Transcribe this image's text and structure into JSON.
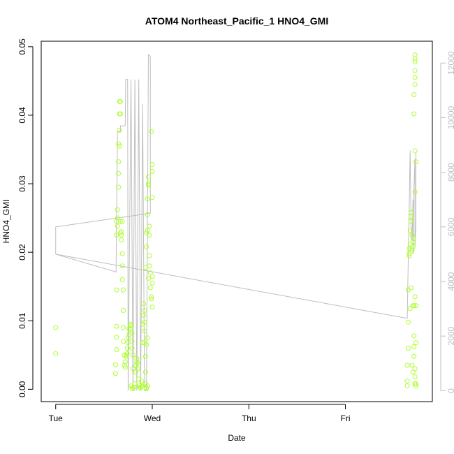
{
  "chart_data": {
    "type": "scatter",
    "title": "ATOM4 Northeast_Pacific_1 HNO4_GMI",
    "xlabel": "Date",
    "ylabel": "HNO4_GMI",
    "x_ticks": [
      {
        "label": "Tue",
        "value": 0
      },
      {
        "label": "Wed",
        "value": 1
      },
      {
        "label": "Thu",
        "value": 2
      },
      {
        "label": "Fri",
        "value": 3
      }
    ],
    "xlim": [
      -0.15,
      3.9
    ],
    "ylim": [
      -0.0018,
      0.0508
    ],
    "y_ticks": [
      "0.00",
      "0.01",
      "0.02",
      "0.03",
      "0.04",
      "0.05"
    ],
    "y2lim": [
      -400,
      12800
    ],
    "y2_ticks": [
      "0",
      "2000",
      "4000",
      "6000",
      "8000",
      "10000",
      "12000"
    ],
    "colors": {
      "points": "#adff2f",
      "line": "#bebebe",
      "axes": "#000000",
      "right_axis": "#bdbdbd"
    },
    "series": [
      {
        "type": "points",
        "axis": "left",
        "values": [
          [
            0.0,
            0.009
          ],
          [
            0.0,
            0.0052
          ],
          [
            0.62,
            0.0023
          ],
          [
            0.62,
            0.0036
          ],
          [
            0.63,
            0.0058
          ],
          [
            0.63,
            0.0076
          ],
          [
            0.63,
            0.0092
          ],
          [
            0.63,
            0.0145
          ],
          [
            0.63,
            0.0225
          ],
          [
            0.63,
            0.0245
          ],
          [
            0.64,
            0.025
          ],
          [
            0.64,
            0.0262
          ],
          [
            0.64,
            0.0238
          ],
          [
            0.65,
            0.0295
          ],
          [
            0.65,
            0.0315
          ],
          [
            0.65,
            0.0332
          ],
          [
            0.65,
            0.0358
          ],
          [
            0.66,
            0.0355
          ],
          [
            0.66,
            0.0378
          ],
          [
            0.66,
            0.0402
          ],
          [
            0.66,
            0.042
          ],
          [
            0.67,
            0.042
          ],
          [
            0.67,
            0.0402
          ],
          [
            0.67,
            0.0245
          ],
          [
            0.67,
            0.0228
          ],
          [
            0.68,
            0.0225
          ],
          [
            0.68,
            0.0218
          ],
          [
            0.68,
            0.023
          ],
          [
            0.69,
            0.0245
          ],
          [
            0.69,
            0.0198
          ],
          [
            0.69,
            0.018
          ],
          [
            0.69,
            0.016
          ],
          [
            0.7,
            0.0145
          ],
          [
            0.7,
            0.0115
          ],
          [
            0.7,
            0.009
          ],
          [
            0.7,
            0.007
          ],
          [
            0.71,
            0.005
          ],
          [
            0.71,
            0.0035
          ],
          [
            0.72,
            0.0032
          ],
          [
            0.72,
            0.004
          ],
          [
            0.73,
            0.0048
          ],
          [
            0.73,
            0.005
          ],
          [
            0.74,
            0.0052
          ],
          [
            0.74,
            0.006
          ],
          [
            0.75,
            0.0068
          ],
          [
            0.75,
            0.0075
          ],
          [
            0.76,
            0.008
          ],
          [
            0.76,
            0.0088
          ],
          [
            0.77,
            0.0095
          ],
          [
            0.78,
            0.0093
          ],
          [
            0.78,
            0.0088
          ],
          [
            0.79,
            0.0082
          ],
          [
            0.79,
            0.007
          ],
          [
            0.79,
            0.006
          ],
          [
            0.8,
            0.005
          ],
          [
            0.8,
            0.003
          ],
          [
            0.78,
            0.0005
          ],
          [
            0.79,
            0.0002
          ],
          [
            0.8,
            0.0001
          ],
          [
            0.81,
            0.0003
          ],
          [
            0.82,
            0.0008
          ],
          [
            0.83,
            0.0025
          ],
          [
            0.83,
            0.0035
          ],
          [
            0.84,
            0.004
          ],
          [
            0.84,
            0.0045
          ],
          [
            0.85,
            0.0038
          ],
          [
            0.85,
            0.003
          ],
          [
            0.86,
            0.0015
          ],
          [
            0.87,
            0.0006
          ],
          [
            0.87,
            0.0003
          ],
          [
            0.88,
            0.0002
          ],
          [
            0.89,
            0.0004
          ],
          [
            0.89,
            0.0012
          ],
          [
            0.9,
            0.0068
          ],
          [
            0.9,
            0.0095
          ],
          [
            0.91,
            0.0108
          ],
          [
            0.91,
            0.0125
          ],
          [
            0.92,
            0.0115
          ],
          [
            0.92,
            0.0098
          ],
          [
            0.92,
            0.0085
          ],
          [
            0.92,
            0.0068
          ],
          [
            0.93,
            0.0048
          ],
          [
            0.93,
            0.0025
          ],
          [
            0.93,
            0.0008
          ],
          [
            0.94,
            0.0002
          ],
          [
            0.94,
            0.0001
          ],
          [
            0.95,
            0.0005
          ],
          [
            0.93,
            0.0178
          ],
          [
            0.94,
            0.0208
          ],
          [
            0.94,
            0.0228
          ],
          [
            0.95,
            0.0232
          ],
          [
            0.95,
            0.0255
          ],
          [
            0.95,
            0.0278
          ],
          [
            0.96,
            0.03
          ],
          [
            0.96,
            0.031
          ],
          [
            0.96,
            0.0298
          ],
          [
            0.97,
            0.0238
          ],
          [
            0.97,
            0.0225
          ],
          [
            0.97,
            0.0195
          ],
          [
            0.97,
            0.018
          ],
          [
            0.98,
            0.017
          ],
          [
            0.98,
            0.0148
          ],
          [
            0.99,
            0.0135
          ],
          [
            0.99,
            0.0132
          ],
          [
            1.0,
            0.0155
          ],
          [
            1.0,
            0.0165
          ],
          [
            1.0,
            0.012
          ],
          [
            1.0,
            0.028
          ],
          [
            1.0,
            0.0318
          ],
          [
            1.0,
            0.0328
          ],
          [
            0.99,
            0.0376
          ],
          [
            0.96,
            0.0162
          ],
          [
            0.95,
            0.0075
          ],
          [
            0.94,
            0.0065
          ],
          [
            3.64,
            0.0005
          ],
          [
            3.64,
            0.0012
          ],
          [
            3.64,
            0.0035
          ],
          [
            3.65,
            0.006
          ],
          [
            3.65,
            0.0098
          ],
          [
            3.65,
            0.0145
          ],
          [
            3.66,
            0.0195
          ],
          [
            3.66,
            0.0205
          ],
          [
            3.66,
            0.0198
          ],
          [
            3.67,
            0.0212
          ],
          [
            3.67,
            0.0232
          ],
          [
            3.68,
            0.0245
          ],
          [
            3.68,
            0.0258
          ],
          [
            3.68,
            0.0252
          ],
          [
            3.69,
            0.0225
          ],
          [
            3.69,
            0.0202
          ],
          [
            3.69,
            0.0205
          ],
          [
            3.7,
            0.0215
          ],
          [
            3.7,
            0.022
          ],
          [
            3.7,
            0.0208
          ],
          [
            3.7,
            0.0122
          ],
          [
            3.71,
            0.0122
          ],
          [
            3.71,
            0.0078
          ],
          [
            3.71,
            0.0062
          ],
          [
            3.71,
            0.0048
          ],
          [
            3.72,
            0.003
          ],
          [
            3.72,
            0.0018
          ],
          [
            3.72,
            0.0008
          ],
          [
            3.73,
            0.0008
          ],
          [
            3.73,
            0.0005
          ],
          [
            3.72,
            0.0288
          ],
          [
            3.72,
            0.0348
          ],
          [
            3.73,
            0.0332
          ],
          [
            3.71,
            0.0402
          ],
          [
            3.71,
            0.043
          ],
          [
            3.72,
            0.0445
          ],
          [
            3.72,
            0.0455
          ],
          [
            3.72,
            0.0465
          ],
          [
            3.72,
            0.0478
          ],
          [
            3.72,
            0.0482
          ],
          [
            3.72,
            0.0488
          ],
          [
            3.68,
            0.0148
          ],
          [
            3.67,
            0.0118
          ],
          [
            3.72,
            0.0135
          ],
          [
            3.73,
            0.0122
          ],
          [
            3.73,
            0.0068
          ],
          [
            3.69,
            0.0035
          ],
          [
            3.7,
            0.0025
          ]
        ]
      },
      {
        "type": "line",
        "axis": "right",
        "values": [
          [
            0.0,
            6000
          ],
          [
            0.0,
            5000
          ],
          [
            0.625,
            4350
          ],
          [
            0.625,
            4400
          ],
          [
            0.64,
            9500
          ],
          [
            0.67,
            9500
          ],
          [
            0.67,
            9700
          ],
          [
            0.72,
            9700
          ],
          [
            0.725,
            11400
          ],
          [
            0.745,
            11400
          ],
          [
            0.75,
            0
          ],
          [
            0.78,
            11400
          ],
          [
            0.8,
            0
          ],
          [
            0.82,
            11400
          ],
          [
            0.84,
            0
          ],
          [
            0.86,
            11400
          ],
          [
            0.88,
            0
          ],
          [
            0.9,
            10500
          ],
          [
            0.92,
            0
          ],
          [
            0.94,
            0
          ],
          [
            0.96,
            12300
          ],
          [
            0.98,
            12250
          ],
          [
            0.98,
            6500
          ],
          [
            0.0,
            6000
          ],
          [
            0.0,
            5000
          ],
          [
            3.64,
            2650
          ],
          [
            3.67,
            8800
          ],
          [
            3.68,
            6000
          ],
          [
            3.69,
            5500
          ],
          [
            3.7,
            7000
          ],
          [
            3.7,
            5000
          ],
          [
            3.71,
            7500
          ],
          [
            3.72,
            8500
          ],
          [
            3.72,
            5300
          ],
          [
            3.73,
            6000
          ],
          [
            3.73,
            8700
          ]
        ]
      }
    ]
  }
}
